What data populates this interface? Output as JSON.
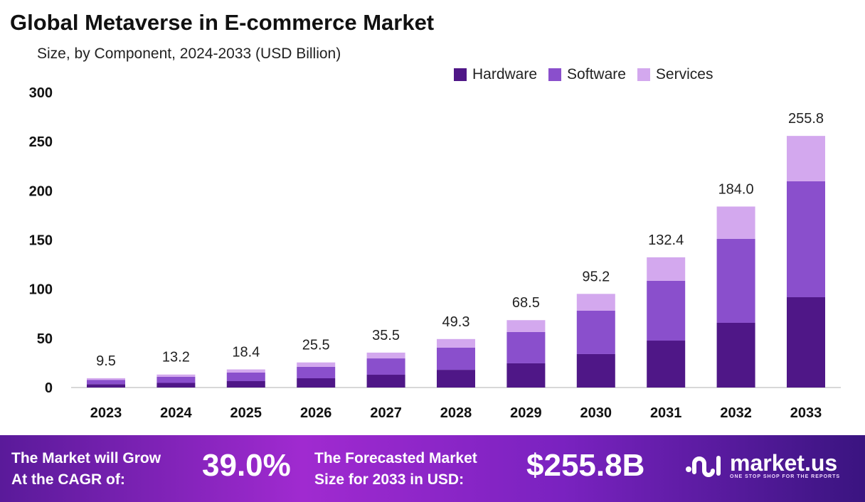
{
  "chart_data": {
    "type": "bar",
    "stacked": true,
    "title": "Global Metaverse in E-commerce Market",
    "subtitle": "Size, by Component, 2024-2033 (USD Billion)",
    "categories": [
      "2023",
      "2024",
      "2025",
      "2026",
      "2027",
      "2028",
      "2029",
      "2030",
      "2031",
      "2032",
      "2033"
    ],
    "series": [
      {
        "name": "Hardware",
        "color": "#4f1787",
        "values": [
          3.4,
          4.7,
          6.5,
          9.4,
          13.0,
          18.0,
          24.6,
          34.0,
          47.7,
          65.8,
          91.8
        ]
      },
      {
        "name": "Software",
        "color": "#8a4fcc",
        "values": [
          4.4,
          6.2,
          8.7,
          11.6,
          16.6,
          22.5,
          31.8,
          44.1,
          60.8,
          85.3,
          117.9
        ]
      },
      {
        "name": "Services",
        "color": "#d3a8ee",
        "values": [
          1.7,
          2.3,
          3.2,
          4.5,
          5.9,
          8.8,
          12.1,
          17.1,
          23.9,
          32.9,
          46.1
        ]
      }
    ],
    "totals": [
      "9.5",
      "13.2",
      "18.4",
      "25.5",
      "35.5",
      "49.3",
      "68.5",
      "95.2",
      "132.4",
      "184.0",
      "255.8"
    ],
    "yticks": [
      "0",
      "50",
      "100",
      "150",
      "200",
      "250",
      "300"
    ],
    "ylim": [
      0,
      300
    ],
    "grid": false,
    "legend": "top-right"
  },
  "footer": {
    "cagr_label_1": "The Market will Grow",
    "cagr_label_2": "At the CAGR of:",
    "cagr_value": "39.0%",
    "forecast_label_1": "The Forecasted Market",
    "forecast_label_2": "Size for 2033 in USD:",
    "forecast_value": "$255.8B",
    "brand": "market.us",
    "brand_tagline": "ONE STOP SHOP FOR THE REPORTS"
  }
}
